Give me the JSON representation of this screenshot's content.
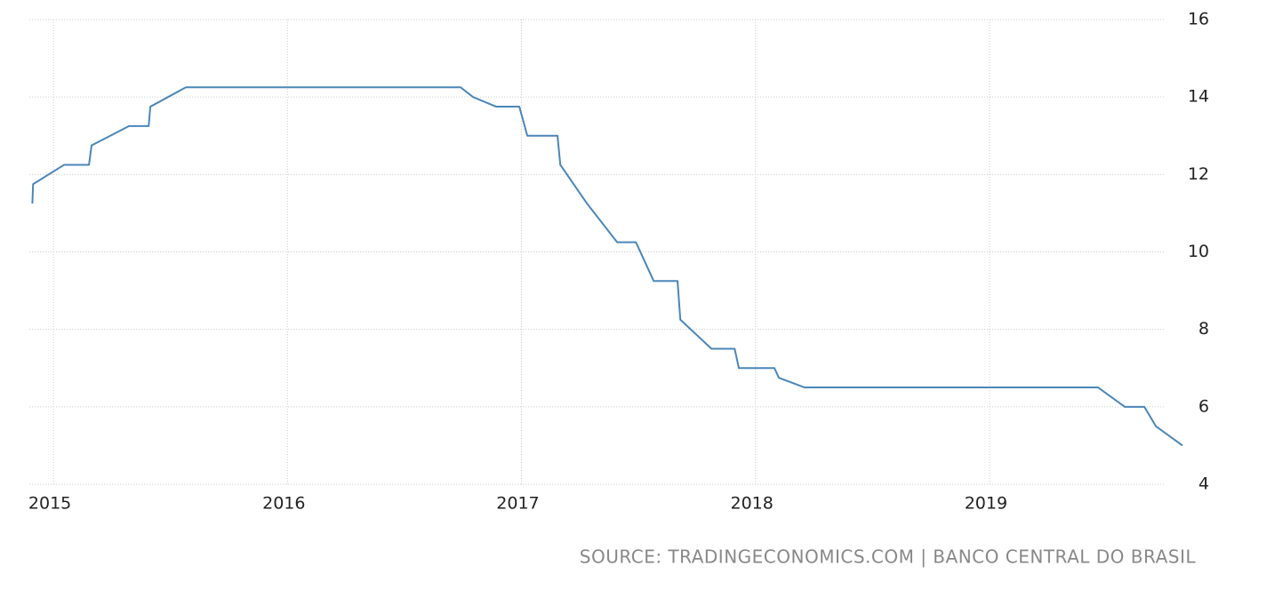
{
  "chart_data": {
    "type": "line",
    "source": "SOURCE: TRADINGECONOMICS.COM | BANCO CENTRAL DO BRASIL",
    "x": [
      2014.91,
      2014.913,
      2015.046,
      2015.152,
      2015.163,
      2015.323,
      2015.407,
      2015.414,
      2015.566,
      2016.74,
      2016.793,
      2016.892,
      2016.991,
      2017.025,
      2017.154,
      2017.166,
      2017.28,
      2017.409,
      2017.489,
      2017.565,
      2017.667,
      2017.679,
      2017.812,
      2017.911,
      2017.929,
      2018.081,
      2018.1,
      2018.21,
      2019.464,
      2019.578,
      2019.662,
      2019.711,
      2019.825
    ],
    "values": [
      11.25,
      11.75,
      12.25,
      12.25,
      12.75,
      13.25,
      13.25,
      13.75,
      14.25,
      14.25,
      14.0,
      13.75,
      13.75,
      13.0,
      13.0,
      12.25,
      11.25,
      10.25,
      10.25,
      9.25,
      9.25,
      8.25,
      7.5,
      7.5,
      7.0,
      7.0,
      6.75,
      6.5,
      6.5,
      6.0,
      6.0,
      5.5,
      5.0
    ],
    "color": "#4a86b8",
    "xlim": [
      2014.897,
      2019.825
    ],
    "xticks": [
      2015,
      2016,
      2017,
      2018,
      2019
    ],
    "ylim": [
      4,
      16
    ],
    "yticks": [
      4,
      6,
      8,
      10,
      12,
      14,
      16
    ],
    "grid": true
  }
}
